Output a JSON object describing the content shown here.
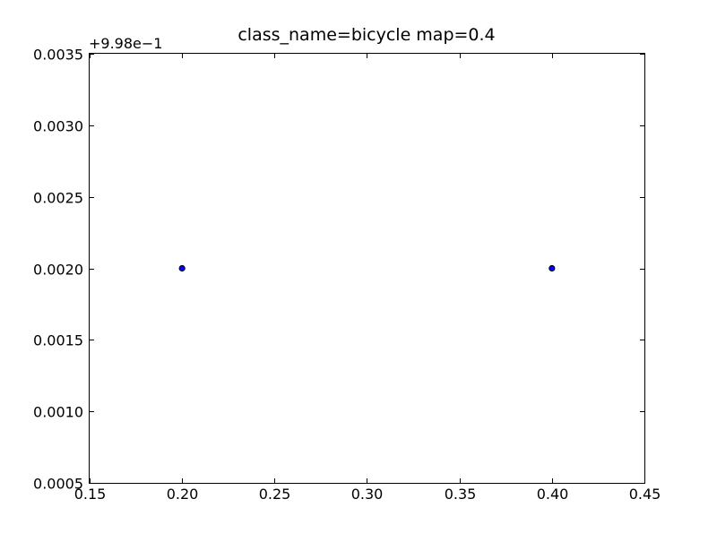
{
  "chart_data": {
    "type": "scatter",
    "title": "class_name=bicycle map=0.4",
    "xlabel": "",
    "ylabel": "",
    "offset_label": "+9.98e−1",
    "xlim": [
      0.15,
      0.45
    ],
    "ylim": [
      0.0005,
      0.0035
    ],
    "xticks": [
      "0.15",
      "0.20",
      "0.25",
      "0.30",
      "0.35",
      "0.40",
      "0.45"
    ],
    "yticks": [
      "0.0005",
      "0.0010",
      "0.0015",
      "0.0020",
      "0.0025",
      "0.0030",
      "0.0035"
    ],
    "grid": false,
    "series": [
      {
        "color": "#0000ff",
        "points": [
          {
            "x": 0.2,
            "y": 0.002
          },
          {
            "x": 0.4,
            "y": 0.002
          }
        ]
      }
    ]
  }
}
